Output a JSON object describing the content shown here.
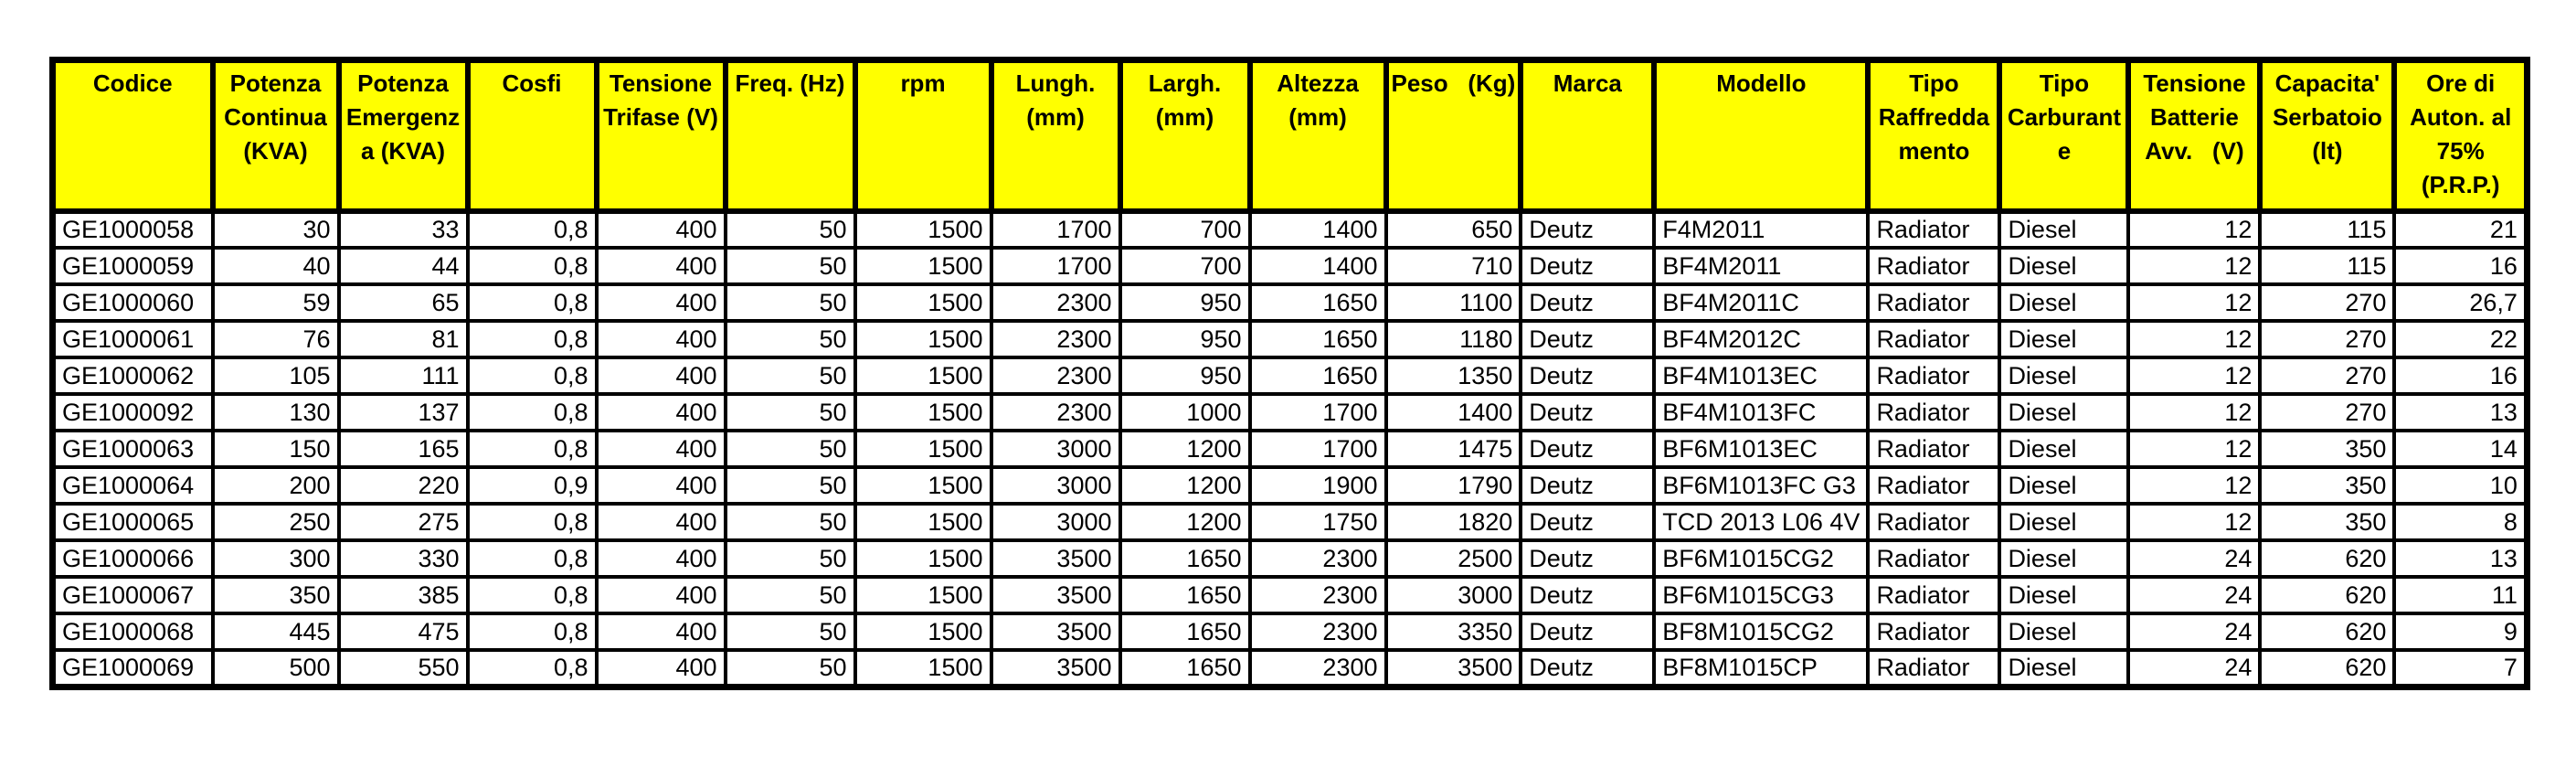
{
  "page": {
    "background_color": "#ffffff",
    "header_fill_color": "#ffff00",
    "border_color": "#000000",
    "text_color": "#000000"
  },
  "table": {
    "columns": [
      {
        "id": "codice",
        "label": "Codice",
        "lines": [
          "Codice"
        ],
        "align": "left"
      },
      {
        "id": "potenza-continua",
        "label": "Potenza Continua (KVA)",
        "lines": [
          "Potenza",
          "Continua",
          "(KVA)"
        ],
        "align": "right"
      },
      {
        "id": "potenza-emergenza",
        "label": "Potenza Emergenza (KVA)",
        "lines": [
          "Potenza",
          "Emergenz",
          "a (KVA)"
        ],
        "align": "right"
      },
      {
        "id": "cosfi",
        "label": "Cosfi",
        "lines": [
          "Cosfi"
        ],
        "align": "right"
      },
      {
        "id": "tensione-trifase",
        "label": "Tensione Trifase (V)",
        "lines": [
          "Tensione",
          "Trifase (V)"
        ],
        "align": "right"
      },
      {
        "id": "freq-hz",
        "label": "Freq. (Hz)",
        "lines": [
          "Freq. (Hz)"
        ],
        "align": "right"
      },
      {
        "id": "rpm",
        "label": "rpm",
        "lines": [
          "rpm"
        ],
        "align": "right"
      },
      {
        "id": "lungh-mm",
        "label": "Lungh. (mm)",
        "lines": [
          "Lungh.",
          "(mm)"
        ],
        "align": "right"
      },
      {
        "id": "largh-mm",
        "label": "Largh. (mm)",
        "lines": [
          "Largh.",
          "(mm)"
        ],
        "align": "right"
      },
      {
        "id": "altezza-mm",
        "label": "Altezza (mm)",
        "lines": [
          "Altezza",
          "(mm)"
        ],
        "align": "right"
      },
      {
        "id": "peso-kg",
        "label": "Peso (Kg)",
        "lines": [
          "Peso   (Kg)"
        ],
        "align": "right"
      },
      {
        "id": "marca",
        "label": "Marca",
        "lines": [
          "Marca"
        ],
        "align": "left"
      },
      {
        "id": "modello",
        "label": "Modello",
        "lines": [
          "Modello"
        ],
        "align": "left"
      },
      {
        "id": "tipo-raffreddamento",
        "label": "Tipo Raffreddamento",
        "lines": [
          "Tipo",
          "Raffredda",
          "mento"
        ],
        "align": "left"
      },
      {
        "id": "tipo-carburante",
        "label": "Tipo Carburante",
        "lines": [
          "Tipo",
          "Carburant",
          "e"
        ],
        "align": "left"
      },
      {
        "id": "tensione-batterie",
        "label": "Tensione Batterie Avv. (V)",
        "lines": [
          "Tensione",
          "Batterie",
          "Avv.   (V)"
        ],
        "align": "right"
      },
      {
        "id": "capacita-serbatoio",
        "label": "Capacita' Serbatoio (lt)",
        "lines": [
          "Capacita'",
          "Serbatoio",
          "(lt)"
        ],
        "align": "right"
      },
      {
        "id": "ore-autonomia",
        "label": "Ore di Auton. al 75% (P.R.P.)",
        "lines": [
          "Ore di",
          "Auton. al",
          "75%",
          "(P.R.P.)"
        ],
        "align": "right"
      }
    ],
    "rows": [
      [
        "GE1000058",
        "30",
        "33",
        "0,8",
        "400",
        "50",
        "1500",
        "1700",
        "700",
        "1400",
        "650",
        "Deutz",
        "F4M2011",
        "Radiator",
        "Diesel",
        "12",
        "115",
        "21"
      ],
      [
        "GE1000059",
        "40",
        "44",
        "0,8",
        "400",
        "50",
        "1500",
        "1700",
        "700",
        "1400",
        "710",
        "Deutz",
        "BF4M2011",
        "Radiator",
        "Diesel",
        "12",
        "115",
        "16"
      ],
      [
        "GE1000060",
        "59",
        "65",
        "0,8",
        "400",
        "50",
        "1500",
        "2300",
        "950",
        "1650",
        "1100",
        "Deutz",
        "BF4M2011C",
        "Radiator",
        "Diesel",
        "12",
        "270",
        "26,7"
      ],
      [
        "GE1000061",
        "76",
        "81",
        "0,8",
        "400",
        "50",
        "1500",
        "2300",
        "950",
        "1650",
        "1180",
        "Deutz",
        "BF4M2012C",
        "Radiator",
        "Diesel",
        "12",
        "270",
        "22"
      ],
      [
        "GE1000062",
        "105",
        "111",
        "0,8",
        "400",
        "50",
        "1500",
        "2300",
        "950",
        "1650",
        "1350",
        "Deutz",
        "BF4M1013EC",
        "Radiator",
        "Diesel",
        "12",
        "270",
        "16"
      ],
      [
        "GE1000092",
        "130",
        "137",
        "0,8",
        "400",
        "50",
        "1500",
        "2300",
        "1000",
        "1700",
        "1400",
        "Deutz",
        "BF4M1013FC",
        "Radiator",
        "Diesel",
        "12",
        "270",
        "13"
      ],
      [
        "GE1000063",
        "150",
        "165",
        "0,8",
        "400",
        "50",
        "1500",
        "3000",
        "1200",
        "1700",
        "1475",
        "Deutz",
        "BF6M1013EC",
        "Radiator",
        "Diesel",
        "12",
        "350",
        "14"
      ],
      [
        "GE1000064",
        "200",
        "220",
        "0,9",
        "400",
        "50",
        "1500",
        "3000",
        "1200",
        "1900",
        "1790",
        "Deutz",
        "BF6M1013FC G3",
        "Radiator",
        "Diesel",
        "12",
        "350",
        "10"
      ],
      [
        "GE1000065",
        "250",
        "275",
        "0,8",
        "400",
        "50",
        "1500",
        "3000",
        "1200",
        "1750",
        "1820",
        "Deutz",
        "TCD 2013 L06 4V",
        "Radiator",
        "Diesel",
        "12",
        "350",
        "8"
      ],
      [
        "GE1000066",
        "300",
        "330",
        "0,8",
        "400",
        "50",
        "1500",
        "3500",
        "1650",
        "2300",
        "2500",
        "Deutz",
        "BF6M1015CG2",
        "Radiator",
        "Diesel",
        "24",
        "620",
        "13"
      ],
      [
        "GE1000067",
        "350",
        "385",
        "0,8",
        "400",
        "50",
        "1500",
        "3500",
        "1650",
        "2300",
        "3000",
        "Deutz",
        "BF6M1015CG3",
        "Radiator",
        "Diesel",
        "24",
        "620",
        "11"
      ],
      [
        "GE1000068",
        "445",
        "475",
        "0,8",
        "400",
        "50",
        "1500",
        "3500",
        "1650",
        "2300",
        "3350",
        "Deutz",
        "BF8M1015CG2",
        "Radiator",
        "Diesel",
        "24",
        "620",
        "9"
      ],
      [
        "GE1000069",
        "500",
        "550",
        "0,8",
        "400",
        "50",
        "1500",
        "3500",
        "1650",
        "2300",
        "3500",
        "Deutz",
        "BF8M1015CP",
        "Radiator",
        "Diesel",
        "24",
        "620",
        "7"
      ]
    ]
  }
}
